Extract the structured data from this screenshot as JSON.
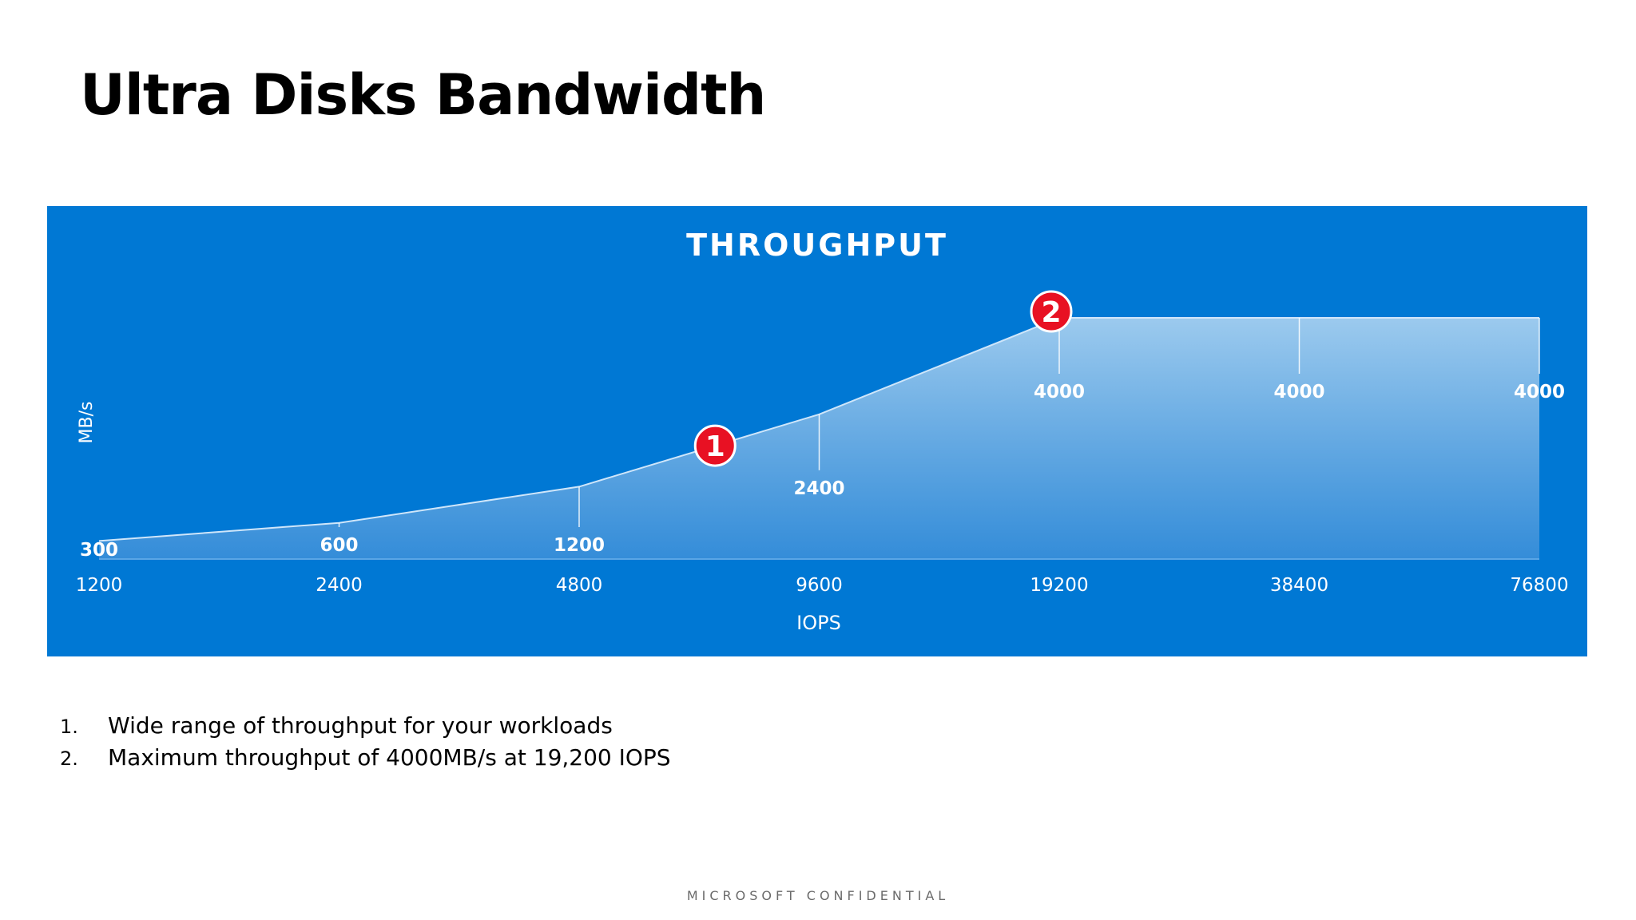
{
  "slide": {
    "title": "Ultra Disks Bandwidth",
    "footer": "MICROSOFT CONFIDENTIAL",
    "notes": [
      {
        "number": "1.",
        "text": "Wide range of throughput for your workloads"
      },
      {
        "number": "2.",
        "text": "Maximum throughput of 4000MB/s at 19,200 IOPS"
      }
    ]
  },
  "colors": {
    "panel": "#0078d4",
    "area_top": "#9ccaee",
    "area_bottom": "#3a8fd9",
    "marker": "#e81123",
    "text_on_panel": "#ffffff"
  },
  "chart_data": {
    "type": "area",
    "title": "THROUGHPUT",
    "xlabel": "IOPS",
    "ylabel": "MB/s",
    "x_scale": "categorical (doubling)",
    "categories": [
      "1200",
      "2400",
      "4800",
      "9600",
      "19200",
      "38400",
      "76800"
    ],
    "series": [
      {
        "values": [
          300,
          600,
          1200,
          2400,
          4000,
          4000,
          4000
        ]
      }
    ],
    "data_labels": [
      "300",
      "600",
      "1200",
      "2400",
      "4000",
      "4000",
      "4000"
    ],
    "ylim": [
      0,
      4000
    ],
    "grid": false,
    "legend": "none",
    "annotations": [
      {
        "label": "1",
        "between": [
          "4800",
          "9600"
        ],
        "y": 2000
      },
      {
        "label": "2",
        "at": "19200",
        "y": 4000
      }
    ]
  }
}
